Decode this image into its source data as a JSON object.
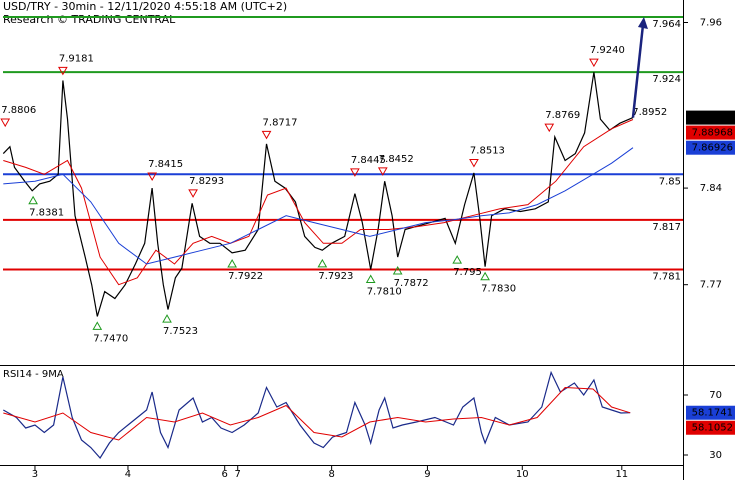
{
  "chart_data": [
    {
      "type": "line",
      "title": "USD/TRY - 30min - 12/11/2020 4:55:18 AM (UTC+2)",
      "subtitle": "Research © TRADING CENTRAL",
      "xlim": [
        2.624,
        9.968
      ],
      "xticks": [
        3,
        4,
        {
          "value": 5.04,
          "label": "6"
        },
        {
          "value": 5.18,
          "label": "7"
        },
        {
          "value": 6.19,
          "label": "8"
        },
        {
          "value": 7.22,
          "label": "9"
        },
        {
          "value": 8.24,
          "label": "10"
        },
        {
          "value": 9.31,
          "label": "11"
        }
      ],
      "ylim": [
        7.7118,
        7.9763
      ],
      "yticks": [
        7.96,
        7.84,
        7.77
      ],
      "series": [
        {
          "color": "#000000",
          "x": [
            2.66,
            2.73,
            2.78,
            2.89,
            2.97,
            3.05,
            3.16,
            3.25,
            3.3,
            3.35,
            3.43,
            3.54,
            3.61,
            3.67,
            3.75,
            3.86,
            3.97,
            4.08,
            4.18,
            4.26,
            4.32,
            4.38,
            4.43,
            4.51,
            4.58,
            4.69,
            4.77,
            4.88,
            4.99,
            5.12,
            5.26,
            5.4,
            5.49,
            5.58,
            5.69,
            5.8,
            5.9,
            6.01,
            6.09,
            6.19,
            6.33,
            6.44,
            6.52,
            6.61,
            6.69,
            6.76,
            6.84,
            6.9,
            6.98,
            7.09,
            7.25,
            7.41,
            7.52,
            7.62,
            7.72,
            7.78,
            7.84,
            7.91,
            8.05,
            8.22,
            8.38,
            8.52,
            8.59,
            8.7,
            8.81,
            8.91,
            9.01,
            9.08,
            9.18,
            9.29,
            9.43
          ],
          "values": [
            7.865,
            7.87,
            7.855,
            7.845,
            7.838,
            7.843,
            7.845,
            7.85,
            7.918,
            7.89,
            7.82,
            7.79,
            7.77,
            7.747,
            7.765,
            7.76,
            7.77,
            7.785,
            7.8,
            7.84,
            7.8,
            7.77,
            7.752,
            7.775,
            7.782,
            7.829,
            7.805,
            7.8,
            7.8,
            7.793,
            7.795,
            7.81,
            7.872,
            7.845,
            7.84,
            7.83,
            7.805,
            7.797,
            7.795,
            7.8,
            7.805,
            7.836,
            7.815,
            7.781,
            7.81,
            7.845,
            7.82,
            7.79,
            7.81,
            7.812,
            7.815,
            7.818,
            7.8,
            7.828,
            7.851,
            7.82,
            7.783,
            7.82,
            7.825,
            7.823,
            7.825,
            7.83,
            7.877,
            7.86,
            7.865,
            7.88,
            7.924,
            7.89,
            7.882,
            7.887,
            7.89108
          ]
        },
        {
          "color": "#e00000",
          "x": [
            2.66,
            2.9,
            3.1,
            3.35,
            3.5,
            3.7,
            3.9,
            4.1,
            4.3,
            4.5,
            4.7,
            4.9,
            5.1,
            5.3,
            5.5,
            5.7,
            5.9,
            6.1,
            6.3,
            6.5,
            6.8,
            7.1,
            7.4,
            7.7,
            8.0,
            8.3,
            8.6,
            8.9,
            9.2,
            9.43
          ],
          "values": [
            7.86,
            7.855,
            7.85,
            7.86,
            7.84,
            7.79,
            7.77,
            7.775,
            7.795,
            7.785,
            7.8,
            7.805,
            7.8,
            7.805,
            7.835,
            7.84,
            7.815,
            7.8,
            7.8,
            7.81,
            7.81,
            7.812,
            7.815,
            7.82,
            7.825,
            7.828,
            7.845,
            7.87,
            7.883,
            7.88968
          ]
        },
        {
          "color": "#1a3fd6",
          "x": [
            2.66,
            3.0,
            3.3,
            3.6,
            3.9,
            4.2,
            4.5,
            4.8,
            5.1,
            5.4,
            5.7,
            6.0,
            6.3,
            6.6,
            6.9,
            7.2,
            7.5,
            7.8,
            8.1,
            8.4,
            8.7,
            9.0,
            9.2,
            9.43
          ],
          "values": [
            7.843,
            7.845,
            7.85,
            7.83,
            7.8,
            7.785,
            7.79,
            7.795,
            7.8,
            7.81,
            7.82,
            7.815,
            7.81,
            7.805,
            7.81,
            7.815,
            7.817,
            7.82,
            7.822,
            7.828,
            7.838,
            7.85,
            7.858,
            7.86926
          ]
        }
      ],
      "levels": [
        {
          "value": 7.964,
          "color": "#1f9a1f"
        },
        {
          "value": 7.924,
          "color": "#1f9a1f"
        },
        {
          "value": 7.85,
          "color": "#1a3fd6"
        },
        {
          "value": 7.817,
          "color": "#e00000"
        },
        {
          "value": 7.781,
          "color": "#e00000"
        }
      ],
      "annotations": [
        {
          "x": 2.68,
          "y": 7.8806,
          "label": "7.8806",
          "marker": "down"
        },
        {
          "x": 2.98,
          "y": 7.8381,
          "label": "7.8381",
          "marker": "up"
        },
        {
          "x": 3.3,
          "y": 7.9181,
          "label": "7.9181",
          "marker": "down"
        },
        {
          "x": 3.67,
          "y": 7.747,
          "label": "7.7470",
          "marker": "up"
        },
        {
          "x": 4.26,
          "y": 7.8415,
          "label": "7.8415",
          "marker": "down"
        },
        {
          "x": 4.42,
          "y": 7.7523,
          "label": "7.7523",
          "marker": "up"
        },
        {
          "x": 4.7,
          "y": 7.8293,
          "label": "7.8293",
          "marker": "down"
        },
        {
          "x": 5.12,
          "y": 7.7922,
          "label": "7.7922",
          "marker": "up"
        },
        {
          "x": 5.49,
          "y": 7.8717,
          "label": "7.8717",
          "marker": "down"
        },
        {
          "x": 6.09,
          "y": 7.7923,
          "label": "7.7923",
          "marker": "up"
        },
        {
          "x": 6.44,
          "y": 7.8445,
          "label": "7.8445",
          "marker": "down"
        },
        {
          "x": 6.74,
          "y": 7.8452,
          "label": "7.8452",
          "marker": "down"
        },
        {
          "x": 6.61,
          "y": 7.781,
          "label": "7.7810",
          "marker": "up"
        },
        {
          "x": 6.9,
          "y": 7.7872,
          "label": "7.7872",
          "marker": "up"
        },
        {
          "x": 7.72,
          "y": 7.8513,
          "label": "7.8513",
          "marker": "down"
        },
        {
          "x": 7.54,
          "y": 7.795,
          "label": "7.795",
          "marker": "up"
        },
        {
          "x": 7.84,
          "y": 7.783,
          "label": "7.7830",
          "marker": "up"
        },
        {
          "x": 8.53,
          "y": 7.8769,
          "label": "7.8769",
          "marker": "down"
        },
        {
          "x": 9.01,
          "y": 7.924,
          "label": "7.9240",
          "marker": "down"
        },
        {
          "x": 9.53,
          "y": 7.8952,
          "label": "7.8952",
          "marker": "none"
        }
      ],
      "price_tags": [
        {
          "value": 7.89108,
          "color": "#000000"
        },
        {
          "value": 7.88968,
          "color": "#e00000"
        },
        {
          "value": 7.86926,
          "color": "#1a3fd6"
        }
      ]
    },
    {
      "type": "line",
      "title": "RSI14 - 9MA",
      "ylim": [
        23.33,
        90
      ],
      "yticks": [
        70,
        30
      ],
      "series": [
        {
          "color": "#1a2a8a",
          "x": [
            2.66,
            2.8,
            2.9,
            3.0,
            3.1,
            3.2,
            3.3,
            3.4,
            3.5,
            3.6,
            3.7,
            3.8,
            3.9,
            4.0,
            4.1,
            4.2,
            4.26,
            4.35,
            4.43,
            4.55,
            4.7,
            4.8,
            4.9,
            5.0,
            5.12,
            5.25,
            5.4,
            5.49,
            5.6,
            5.7,
            5.85,
            6.0,
            6.1,
            6.2,
            6.35,
            6.44,
            6.55,
            6.61,
            6.7,
            6.76,
            6.85,
            6.95,
            7.1,
            7.3,
            7.5,
            7.6,
            7.72,
            7.8,
            7.84,
            7.95,
            8.1,
            8.3,
            8.45,
            8.55,
            8.65,
            8.8,
            8.9,
            9.01,
            9.1,
            9.2,
            9.3,
            9.4
          ],
          "values": [
            60,
            55,
            48,
            50,
            45,
            50,
            82,
            55,
            40,
            35,
            28,
            38,
            45,
            50,
            55,
            60,
            72,
            45,
            35,
            60,
            68,
            52,
            55,
            48,
            45,
            50,
            58,
            75,
            62,
            65,
            50,
            38,
            35,
            42,
            45,
            65,
            50,
            38,
            60,
            68,
            48,
            50,
            52,
            55,
            50,
            62,
            68,
            45,
            38,
            55,
            50,
            52,
            62,
            85,
            72,
            78,
            70,
            80,
            62,
            60,
            58,
            58.1741
          ]
        },
        {
          "color": "#e00000",
          "x": [
            2.66,
            3.0,
            3.3,
            3.6,
            3.9,
            4.2,
            4.5,
            4.8,
            5.1,
            5.4,
            5.7,
            6.0,
            6.3,
            6.6,
            6.9,
            7.2,
            7.5,
            7.8,
            8.1,
            8.4,
            8.7,
            9.0,
            9.2,
            9.4
          ],
          "values": [
            58,
            52,
            58,
            45,
            40,
            55,
            52,
            58,
            50,
            55,
            63,
            45,
            42,
            52,
            55,
            52,
            54,
            55,
            50,
            55,
            75,
            74,
            62,
            58.1052
          ]
        }
      ],
      "price_tags": [
        {
          "value": 58.1741,
          "color": "#1a3fd6"
        },
        {
          "value": 58.1052,
          "color": "#e00000"
        }
      ]
    }
  ]
}
